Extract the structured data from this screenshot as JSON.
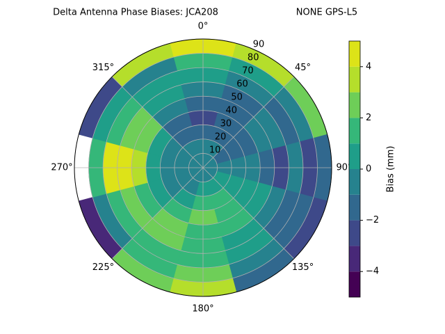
{
  "chart_data": {
    "type": "polar_contour",
    "title": "Delta Antenna Phase Biases: JCA208",
    "subtitle": "NONE GPS-L5",
    "theta": [
      0,
      30,
      60,
      90,
      120,
      150,
      180,
      210,
      240,
      270,
      300,
      330
    ],
    "r": [
      5,
      15,
      25,
      35,
      45,
      55,
      65,
      75,
      85
    ],
    "values": [
      [
        -1,
        -1,
        -1,
        -1,
        -1,
        -1,
        -1,
        -1,
        -1,
        -1,
        -1,
        -1
      ],
      [
        -1,
        -1,
        -2,
        -1,
        0,
        0,
        0,
        -1,
        -1,
        -1,
        -1,
        -1
      ],
      [
        -2,
        -2,
        -2,
        -1,
        0,
        1,
        1,
        0,
        -1,
        -1,
        -1,
        -2
      ],
      [
        -3,
        -2,
        -2,
        -1,
        0,
        1,
        2,
        1,
        0,
        0,
        0,
        -2
      ],
      [
        -2,
        -2,
        -1,
        -2,
        0,
        1,
        1,
        2,
        1,
        3,
        2,
        -1
      ],
      [
        -1,
        -2,
        -1,
        -3,
        -1,
        0,
        1,
        2,
        2,
        4,
        2,
        0
      ],
      [
        0,
        -1,
        -2,
        -1,
        -2,
        0,
        1,
        1,
        1,
        4,
        1,
        0
      ],
      [
        1,
        0,
        -1,
        -3,
        -2,
        -1,
        2,
        1,
        -1,
        1,
        0,
        -1
      ],
      [
        4,
        3,
        2,
        -2,
        -3,
        -2,
        3,
        2,
        -4,
        null,
        -3,
        3
      ]
    ],
    "rlim": [
      0,
      90
    ],
    "rticks": [
      10,
      20,
      30,
      40,
      50,
      60,
      70,
      80,
      90
    ],
    "thetaticks": [
      {
        "value": 0,
        "label": "0°"
      },
      {
        "value": 45,
        "label": "45°"
      },
      {
        "value": 90,
        "label": "90°"
      },
      {
        "value": 135,
        "label": "135°"
      },
      {
        "value": 180,
        "label": "180°"
      },
      {
        "value": 225,
        "label": "225°"
      },
      {
        "value": 270,
        "label": "270°"
      },
      {
        "value": 315,
        "label": "315°"
      }
    ],
    "levels": [
      -5,
      -4,
      -3,
      -2,
      -1,
      0,
      1,
      2,
      3,
      4,
      5
    ],
    "colors": [
      "#440154",
      "#482878",
      "#3e4989",
      "#31688e",
      "#26828e",
      "#1f9e89",
      "#35b779",
      "#6ece58",
      "#b5de2b",
      "#dde318"
    ],
    "colorbar_label": "Bias (mm)",
    "colorbar_ticks": [
      {
        "value": -4,
        "label": "−4"
      },
      {
        "value": -2,
        "label": "−2"
      },
      0,
      2,
      4
    ],
    "grid": true
  }
}
